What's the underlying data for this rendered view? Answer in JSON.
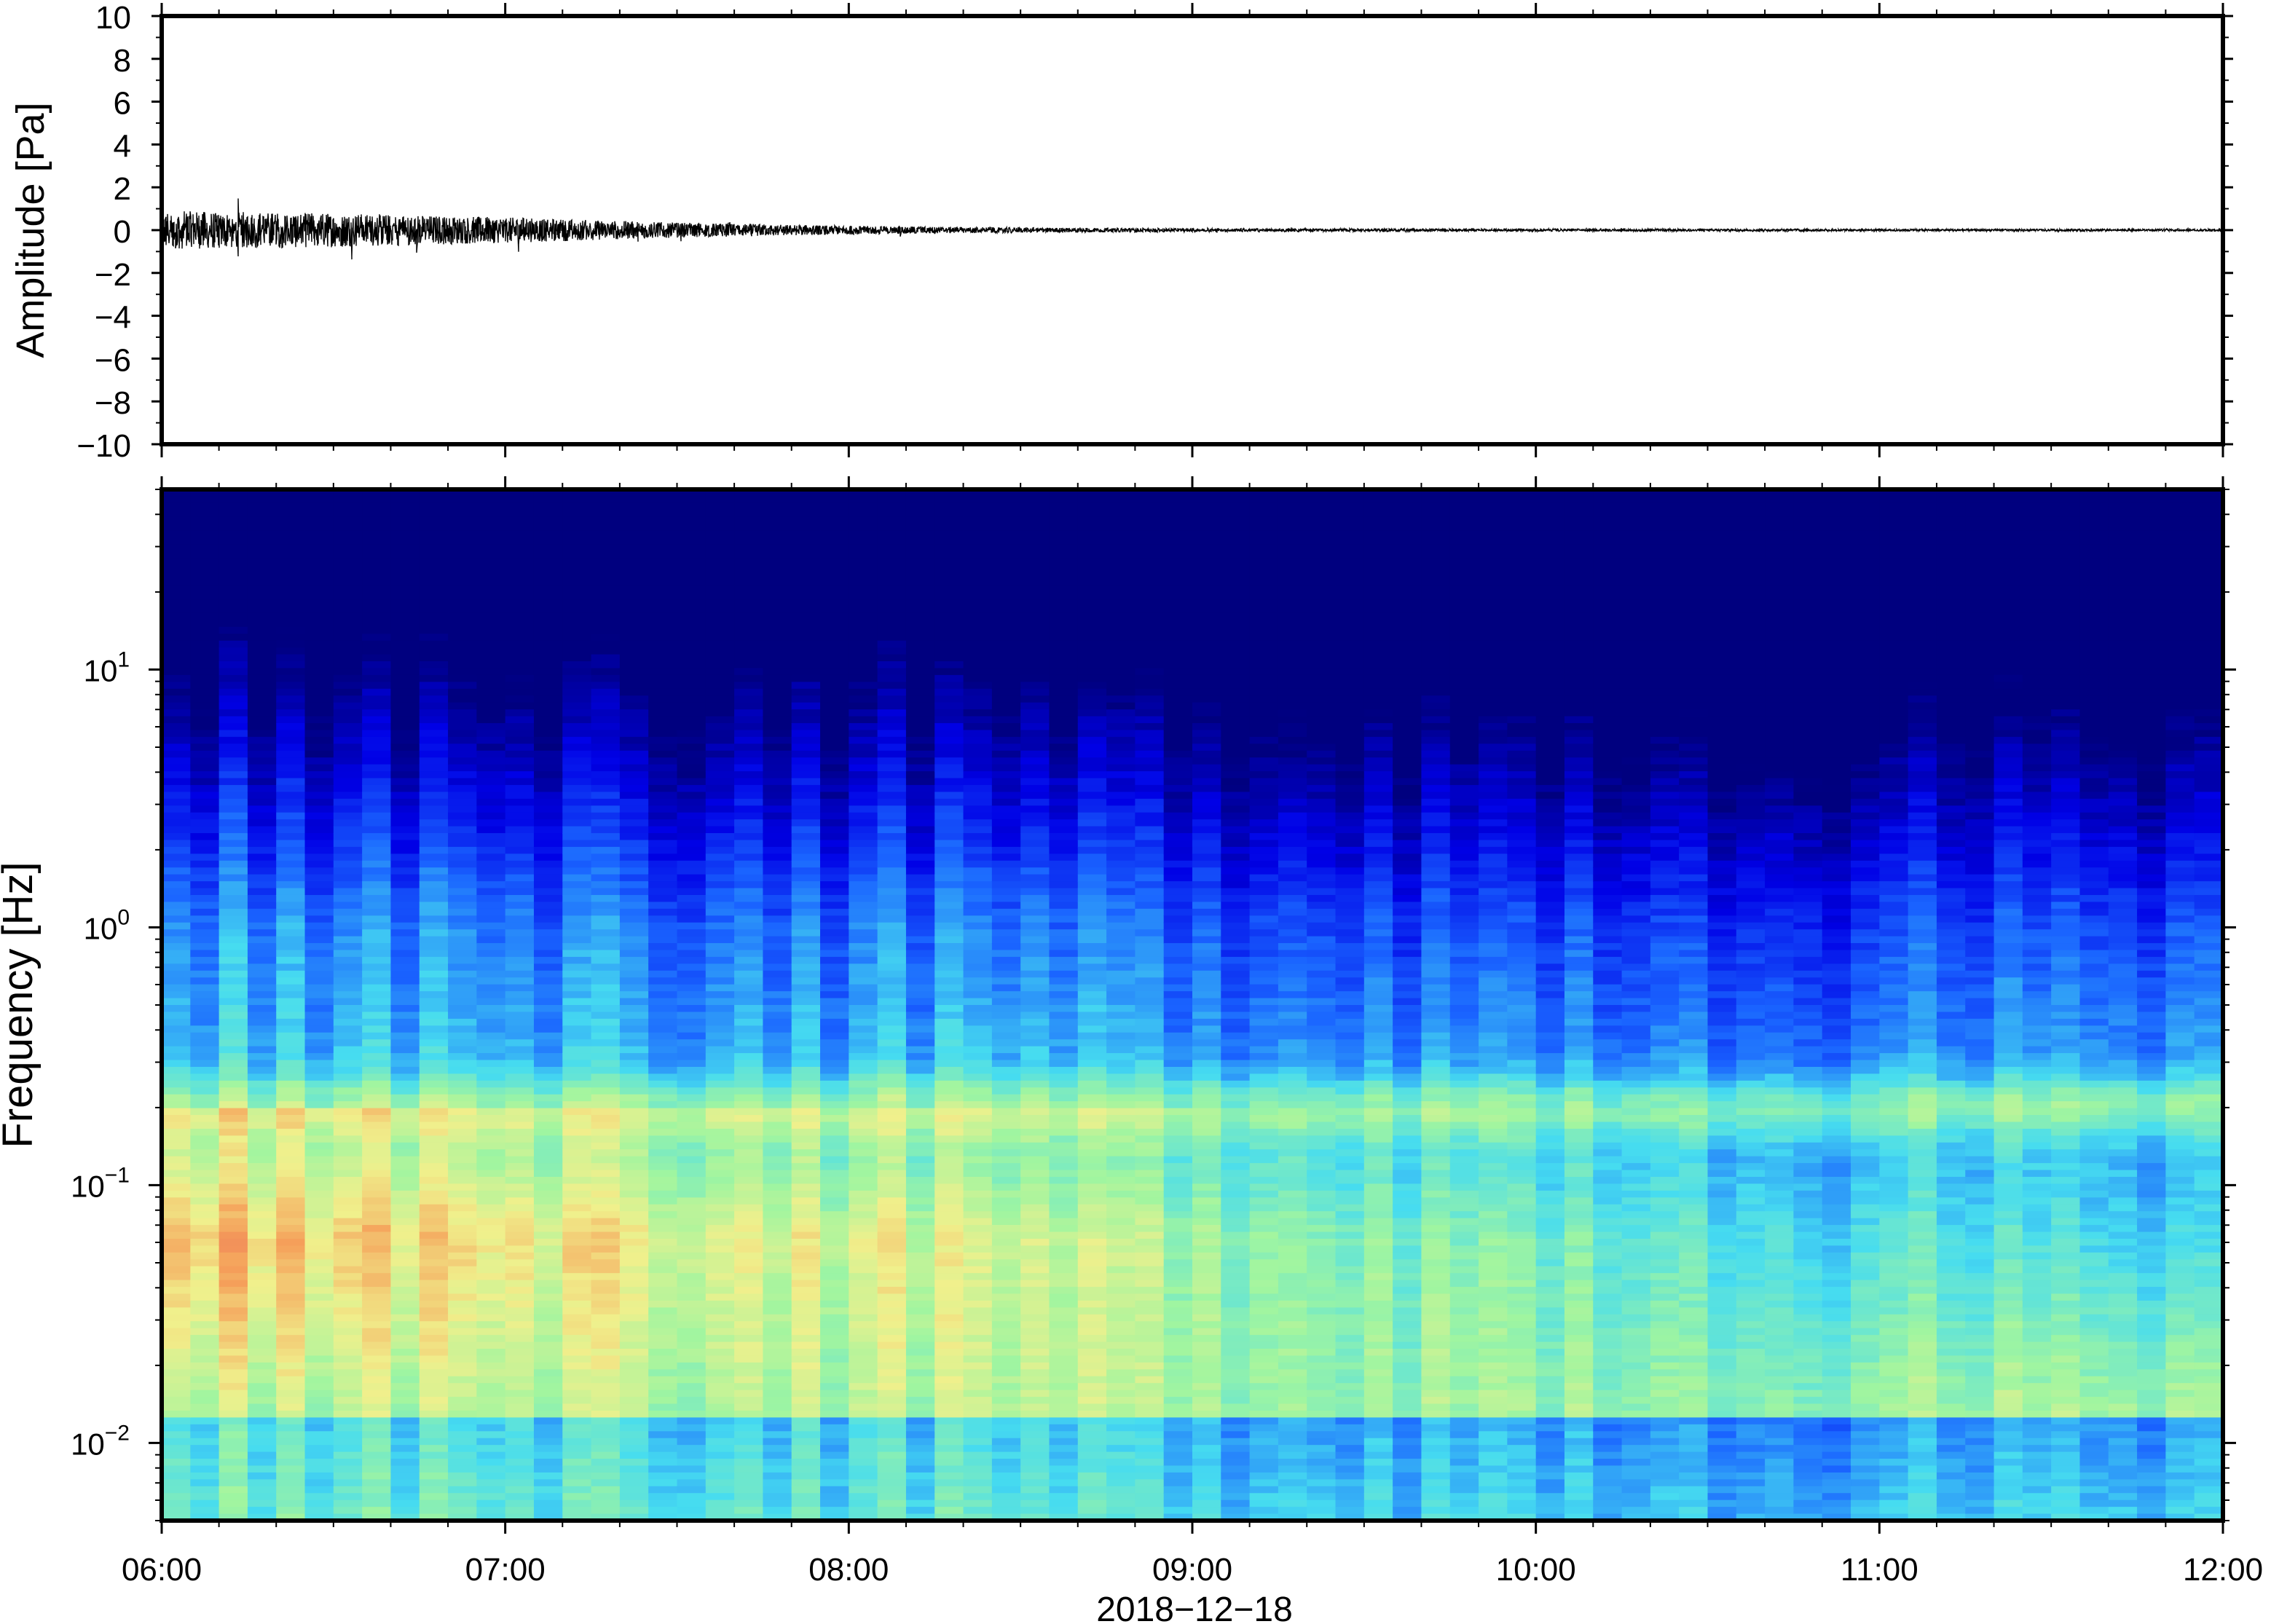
{
  "chart_data": [
    {
      "type": "line",
      "ylabel": "Amplitude [Pa]",
      "ylim": [
        -10,
        10
      ],
      "yticks": [
        "10",
        "8",
        "6",
        "4",
        "2",
        "0",
        "−2",
        "−4",
        "−6",
        "−8",
        "−10"
      ],
      "ytick_values": [
        10,
        8,
        6,
        4,
        2,
        0,
        -2,
        -4,
        -6,
        -8,
        -10
      ],
      "xlim": [
        "06:00",
        "12:00"
      ],
      "envelope": {
        "time": [
          "06:00",
          "06:30",
          "07:00",
          "07:30",
          "08:00",
          "08:30",
          "09:00",
          "09:30",
          "10:00",
          "10:30",
          "11:00",
          "11:30",
          "12:00"
        ],
        "amplitude": [
          0.9,
          0.8,
          0.6,
          0.35,
          0.2,
          0.12,
          0.08,
          0.07,
          0.06,
          0.06,
          0.05,
          0.05,
          0.05
        ]
      },
      "grid": false,
      "line_color": "#000000"
    },
    {
      "type": "heatmap",
      "ylabel": "Frequency [Hz]",
      "xlabel": "2018−12−18",
      "yscale": "log",
      "ylim": [
        0.005,
        50
      ],
      "yticks": [
        {
          "value": 10,
          "base": "10",
          "exp": "1"
        },
        {
          "value": 1,
          "base": "10",
          "exp": "0"
        },
        {
          "value": 0.1,
          "base": "10",
          "exp": "−1"
        },
        {
          "value": 0.01,
          "base": "10",
          "exp": "−2"
        }
      ],
      "xticks": [
        "06:00",
        "07:00",
        "08:00",
        "09:00",
        "10:00",
        "11:00",
        "12:00"
      ],
      "xtick_values_hours": [
        6,
        7,
        8,
        9,
        10,
        11,
        12
      ],
      "colormap": "jet",
      "colors": {
        "low": "#00007f",
        "blue": "#1a64ff",
        "cyan": "#46dcf0",
        "green": "#a0f5a0",
        "yellow": "#f0f08c",
        "orange": "#f5a05a",
        "red": "#e6505a"
      },
      "grid": false
    }
  ]
}
